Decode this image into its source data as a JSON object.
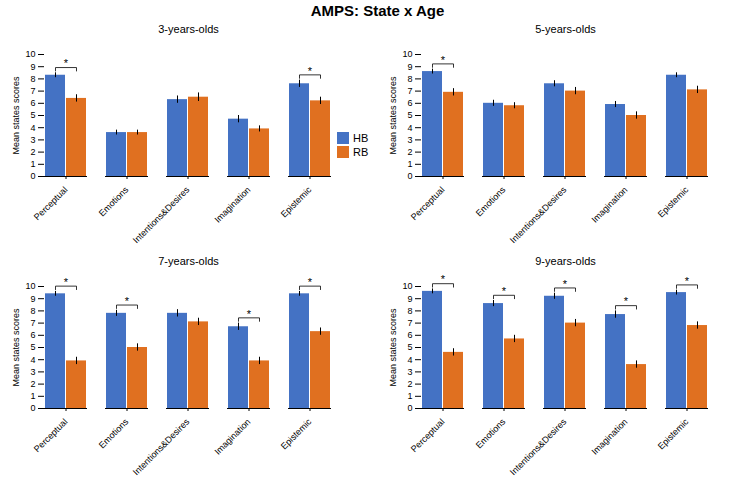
{
  "title": "AMPS: State x Age",
  "chart_data": [
    {
      "type": "bar",
      "title": "3-years-olds",
      "categories": [
        "Perceptual",
        "Emotions",
        "Intentions&Desires",
        "Imagination",
        "Epistemic"
      ],
      "series": [
        {
          "name": "HB",
          "color": "#4472C4",
          "values": [
            8.3,
            3.6,
            6.3,
            4.7,
            7.6
          ],
          "errors": [
            0.2,
            0.2,
            0.3,
            0.3,
            0.3
          ]
        },
        {
          "name": "RB",
          "color": "#E07020",
          "values": [
            6.4,
            3.6,
            6.5,
            3.9,
            6.2
          ],
          "errors": [
            0.3,
            0.2,
            0.35,
            0.25,
            0.3
          ]
        }
      ],
      "annotations": [
        {
          "category": "Perceptual",
          "text": "*"
        },
        {
          "category": "Epistemic",
          "text": "*"
        }
      ],
      "ylim": [
        0,
        10
      ],
      "yticks": [
        0,
        1,
        2,
        3,
        4,
        5,
        6,
        7,
        8,
        9,
        10
      ],
      "ylabel": "Mean states scores",
      "legend": "right"
    },
    {
      "type": "bar",
      "title": "5-years-olds",
      "categories": [
        "Perceptual",
        "Emotions",
        "Intentions&Desires",
        "Imagination",
        "Epistemic"
      ],
      "series": [
        {
          "name": "HB",
          "color": "#4472C4",
          "values": [
            8.6,
            6.0,
            7.6,
            5.9,
            8.3
          ],
          "errors": [
            0.2,
            0.25,
            0.25,
            0.25,
            0.2
          ]
        },
        {
          "name": "RB",
          "color": "#E07020",
          "values": [
            6.9,
            5.8,
            7.0,
            5.0,
            7.1
          ],
          "errors": [
            0.3,
            0.25,
            0.3,
            0.3,
            0.3
          ]
        }
      ],
      "annotations": [
        {
          "category": "Perceptual",
          "text": "*"
        }
      ],
      "ylim": [
        0,
        10
      ],
      "yticks": [
        0,
        1,
        2,
        3,
        4,
        5,
        6,
        7,
        8,
        9,
        10
      ],
      "ylabel": "Mean states scores"
    },
    {
      "type": "bar",
      "title": "7-years-olds",
      "categories": [
        "Perceptual",
        "Emotions",
        "Intentions&Desires",
        "Imagination",
        "Epistemic"
      ],
      "series": [
        {
          "name": "HB",
          "color": "#4472C4",
          "values": [
            9.4,
            7.8,
            7.8,
            6.7,
            9.4
          ],
          "errors": [
            0.2,
            0.25,
            0.3,
            0.3,
            0.2
          ]
        },
        {
          "name": "RB",
          "color": "#E07020",
          "values": [
            3.9,
            5.0,
            7.1,
            3.9,
            6.3
          ],
          "errors": [
            0.3,
            0.3,
            0.3,
            0.3,
            0.3
          ]
        }
      ],
      "annotations": [
        {
          "category": "Perceptual",
          "text": "*"
        },
        {
          "category": "Emotions",
          "text": "*"
        },
        {
          "category": "Imagination",
          "text": "*"
        },
        {
          "category": "Epistemic",
          "text": "*"
        }
      ],
      "ylim": [
        0,
        10
      ],
      "yticks": [
        0,
        1,
        2,
        3,
        4,
        5,
        6,
        7,
        8,
        9,
        10
      ],
      "ylabel": "Mean states scores"
    },
    {
      "type": "bar",
      "title": "9-years-olds",
      "categories": [
        "Perceptual",
        "Emotions",
        "Intentions&Desires",
        "Imagination",
        "Epistemic"
      ],
      "series": [
        {
          "name": "HB",
          "color": "#4472C4",
          "values": [
            9.6,
            8.6,
            9.2,
            7.7,
            9.5
          ],
          "errors": [
            0.2,
            0.25,
            0.25,
            0.3,
            0.2
          ]
        },
        {
          "name": "RB",
          "color": "#E07020",
          "values": [
            4.6,
            5.7,
            7.0,
            3.6,
            6.8
          ],
          "errors": [
            0.3,
            0.3,
            0.3,
            0.3,
            0.3
          ]
        }
      ],
      "annotations": [
        {
          "category": "Perceptual",
          "text": "*"
        },
        {
          "category": "Emotions",
          "text": "*"
        },
        {
          "category": "Intentions&Desires",
          "text": "*"
        },
        {
          "category": "Imagination",
          "text": "*"
        },
        {
          "category": "Epistemic",
          "text": "*"
        }
      ],
      "ylim": [
        0,
        10
      ],
      "yticks": [
        0,
        1,
        2,
        3,
        4,
        5,
        6,
        7,
        8,
        9,
        10
      ],
      "ylabel": "Mean states scores"
    }
  ]
}
